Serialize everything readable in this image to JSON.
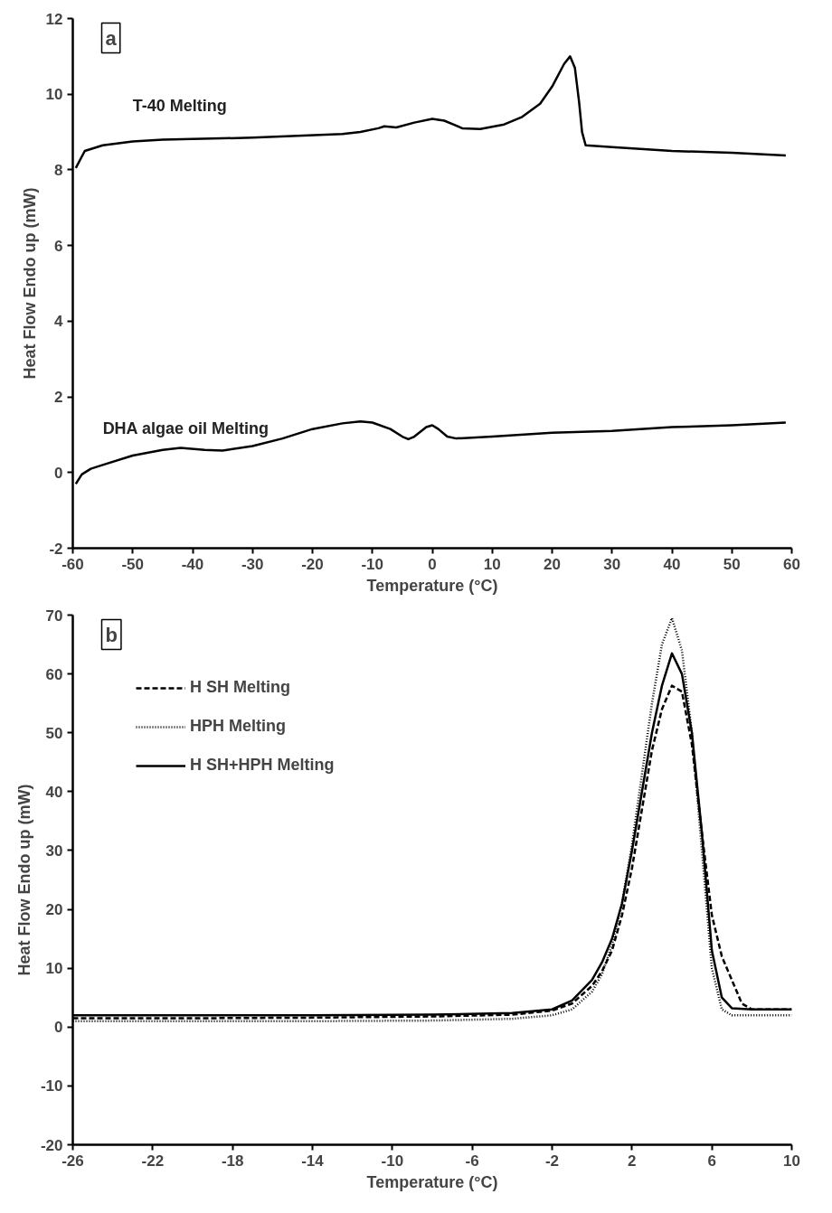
{
  "chart_data": [
    {
      "type": "line",
      "title": "a",
      "xlabel": "Temperature (°C)",
      "ylabel": "Heat Flow Endo up (mW)",
      "xlim": [
        -60,
        60
      ],
      "ylim": [
        -2,
        12
      ],
      "xticks": [
        -60,
        -50,
        -40,
        -30,
        -20,
        -10,
        0,
        10,
        20,
        30,
        40,
        50,
        60
      ],
      "yticks": [
        -2,
        0,
        2,
        4,
        6,
        8,
        10,
        12
      ],
      "grid": false,
      "legend": false,
      "line_style": "solid",
      "series": [
        {
          "name": "T-40 Melting",
          "color": "#000000",
          "x": [
            -59.5,
            -58,
            -55,
            -50,
            -45,
            -30,
            -15,
            -12,
            -9,
            -8,
            -6,
            -3,
            0,
            2,
            3.5,
            5,
            8,
            12,
            15,
            18,
            20,
            22,
            23,
            23.8,
            24.5,
            25,
            25.6,
            30,
            40,
            50,
            59
          ],
          "values": [
            8.05,
            8.5,
            8.65,
            8.75,
            8.8,
            8.85,
            8.95,
            9.0,
            9.1,
            9.15,
            9.12,
            9.25,
            9.35,
            9.3,
            9.2,
            9.1,
            9.08,
            9.2,
            9.4,
            9.75,
            10.2,
            10.8,
            11.0,
            10.7,
            9.8,
            9.0,
            8.65,
            8.6,
            8.5,
            8.45,
            8.38
          ]
        },
        {
          "name": "DHA  algae oil Melting",
          "color": "#000000",
          "x": [
            -59.5,
            -58.5,
            -57,
            -55,
            -50,
            -45,
            -42,
            -38,
            -35,
            -30,
            -25,
            -20,
            -15,
            -12,
            -10,
            -7,
            -5,
            -4,
            -3,
            -1,
            0,
            1,
            2.5,
            4,
            10,
            20,
            30,
            40,
            50,
            59
          ],
          "values": [
            -0.3,
            -0.05,
            0.1,
            0.2,
            0.45,
            0.6,
            0.65,
            0.6,
            0.58,
            0.7,
            0.9,
            1.15,
            1.3,
            1.35,
            1.32,
            1.15,
            0.95,
            0.88,
            0.95,
            1.2,
            1.25,
            1.15,
            0.95,
            0.9,
            0.95,
            1.05,
            1.1,
            1.2,
            1.25,
            1.32
          ]
        }
      ]
    },
    {
      "type": "line",
      "title": "b",
      "xlabel": "Temperature (°C)",
      "ylabel": "Heat Flow Endo up (mW)",
      "xlim": [
        -26,
        10
      ],
      "ylim": [
        -20,
        70
      ],
      "xticks": [
        -26,
        -22,
        -18,
        -14,
        -10,
        -6,
        -2,
        2,
        6,
        10
      ],
      "yticks": [
        -20,
        -10,
        0,
        10,
        20,
        30,
        40,
        50,
        60,
        70
      ],
      "grid": false,
      "legend": "top left",
      "series": [
        {
          "name": "H SH Melting",
          "color": "#000000",
          "line_style": "dashed",
          "x": [
            -26,
            -20,
            -14,
            -8,
            -4,
            -2,
            -1,
            0,
            0.5,
            1,
            1.5,
            2,
            2.5,
            3,
            3.5,
            4,
            4.5,
            5,
            5.5,
            6,
            6.5,
            7,
            7.5,
            8,
            10
          ],
          "values": [
            1.5,
            1.5,
            1.6,
            1.8,
            2.1,
            2.8,
            4,
            7,
            9.5,
            13,
            19,
            27,
            37,
            47,
            54,
            58,
            57,
            48,
            33,
            19,
            12,
            8,
            4,
            3,
            3
          ]
        },
        {
          "name": "HPH Melting",
          "color": "#000000",
          "line_style": "dotted",
          "x": [
            -26,
            -20,
            -14,
            -8,
            -4,
            -2,
            -1,
            0,
            0.5,
            1,
            1.5,
            2,
            2.5,
            3,
            3.5,
            4,
            4.5,
            5,
            5.5,
            6,
            6.5,
            7,
            10
          ],
          "values": [
            1,
            1,
            1,
            1.1,
            1.4,
            2,
            3,
            6,
            9,
            14,
            21,
            31,
            43,
            55,
            65,
            69.5,
            64,
            50,
            30,
            10,
            3,
            2,
            2
          ]
        },
        {
          "name": "H SH+HPH Melting",
          "color": "#000000",
          "line_style": "solid",
          "x": [
            -26,
            -20,
            -14,
            -8,
            -4,
            -2,
            -1,
            0,
            0.5,
            1,
            1.5,
            2,
            2.5,
            3,
            3.5,
            4,
            4.5,
            5,
            5.5,
            6,
            6.5,
            7,
            8,
            10
          ],
          "values": [
            2,
            2,
            2,
            2.1,
            2.4,
            3,
            4.5,
            8,
            11,
            15,
            21,
            30,
            40,
            50,
            58,
            63.5,
            60,
            50,
            33,
            13,
            5,
            3.2,
            3,
            3
          ]
        }
      ]
    }
  ]
}
